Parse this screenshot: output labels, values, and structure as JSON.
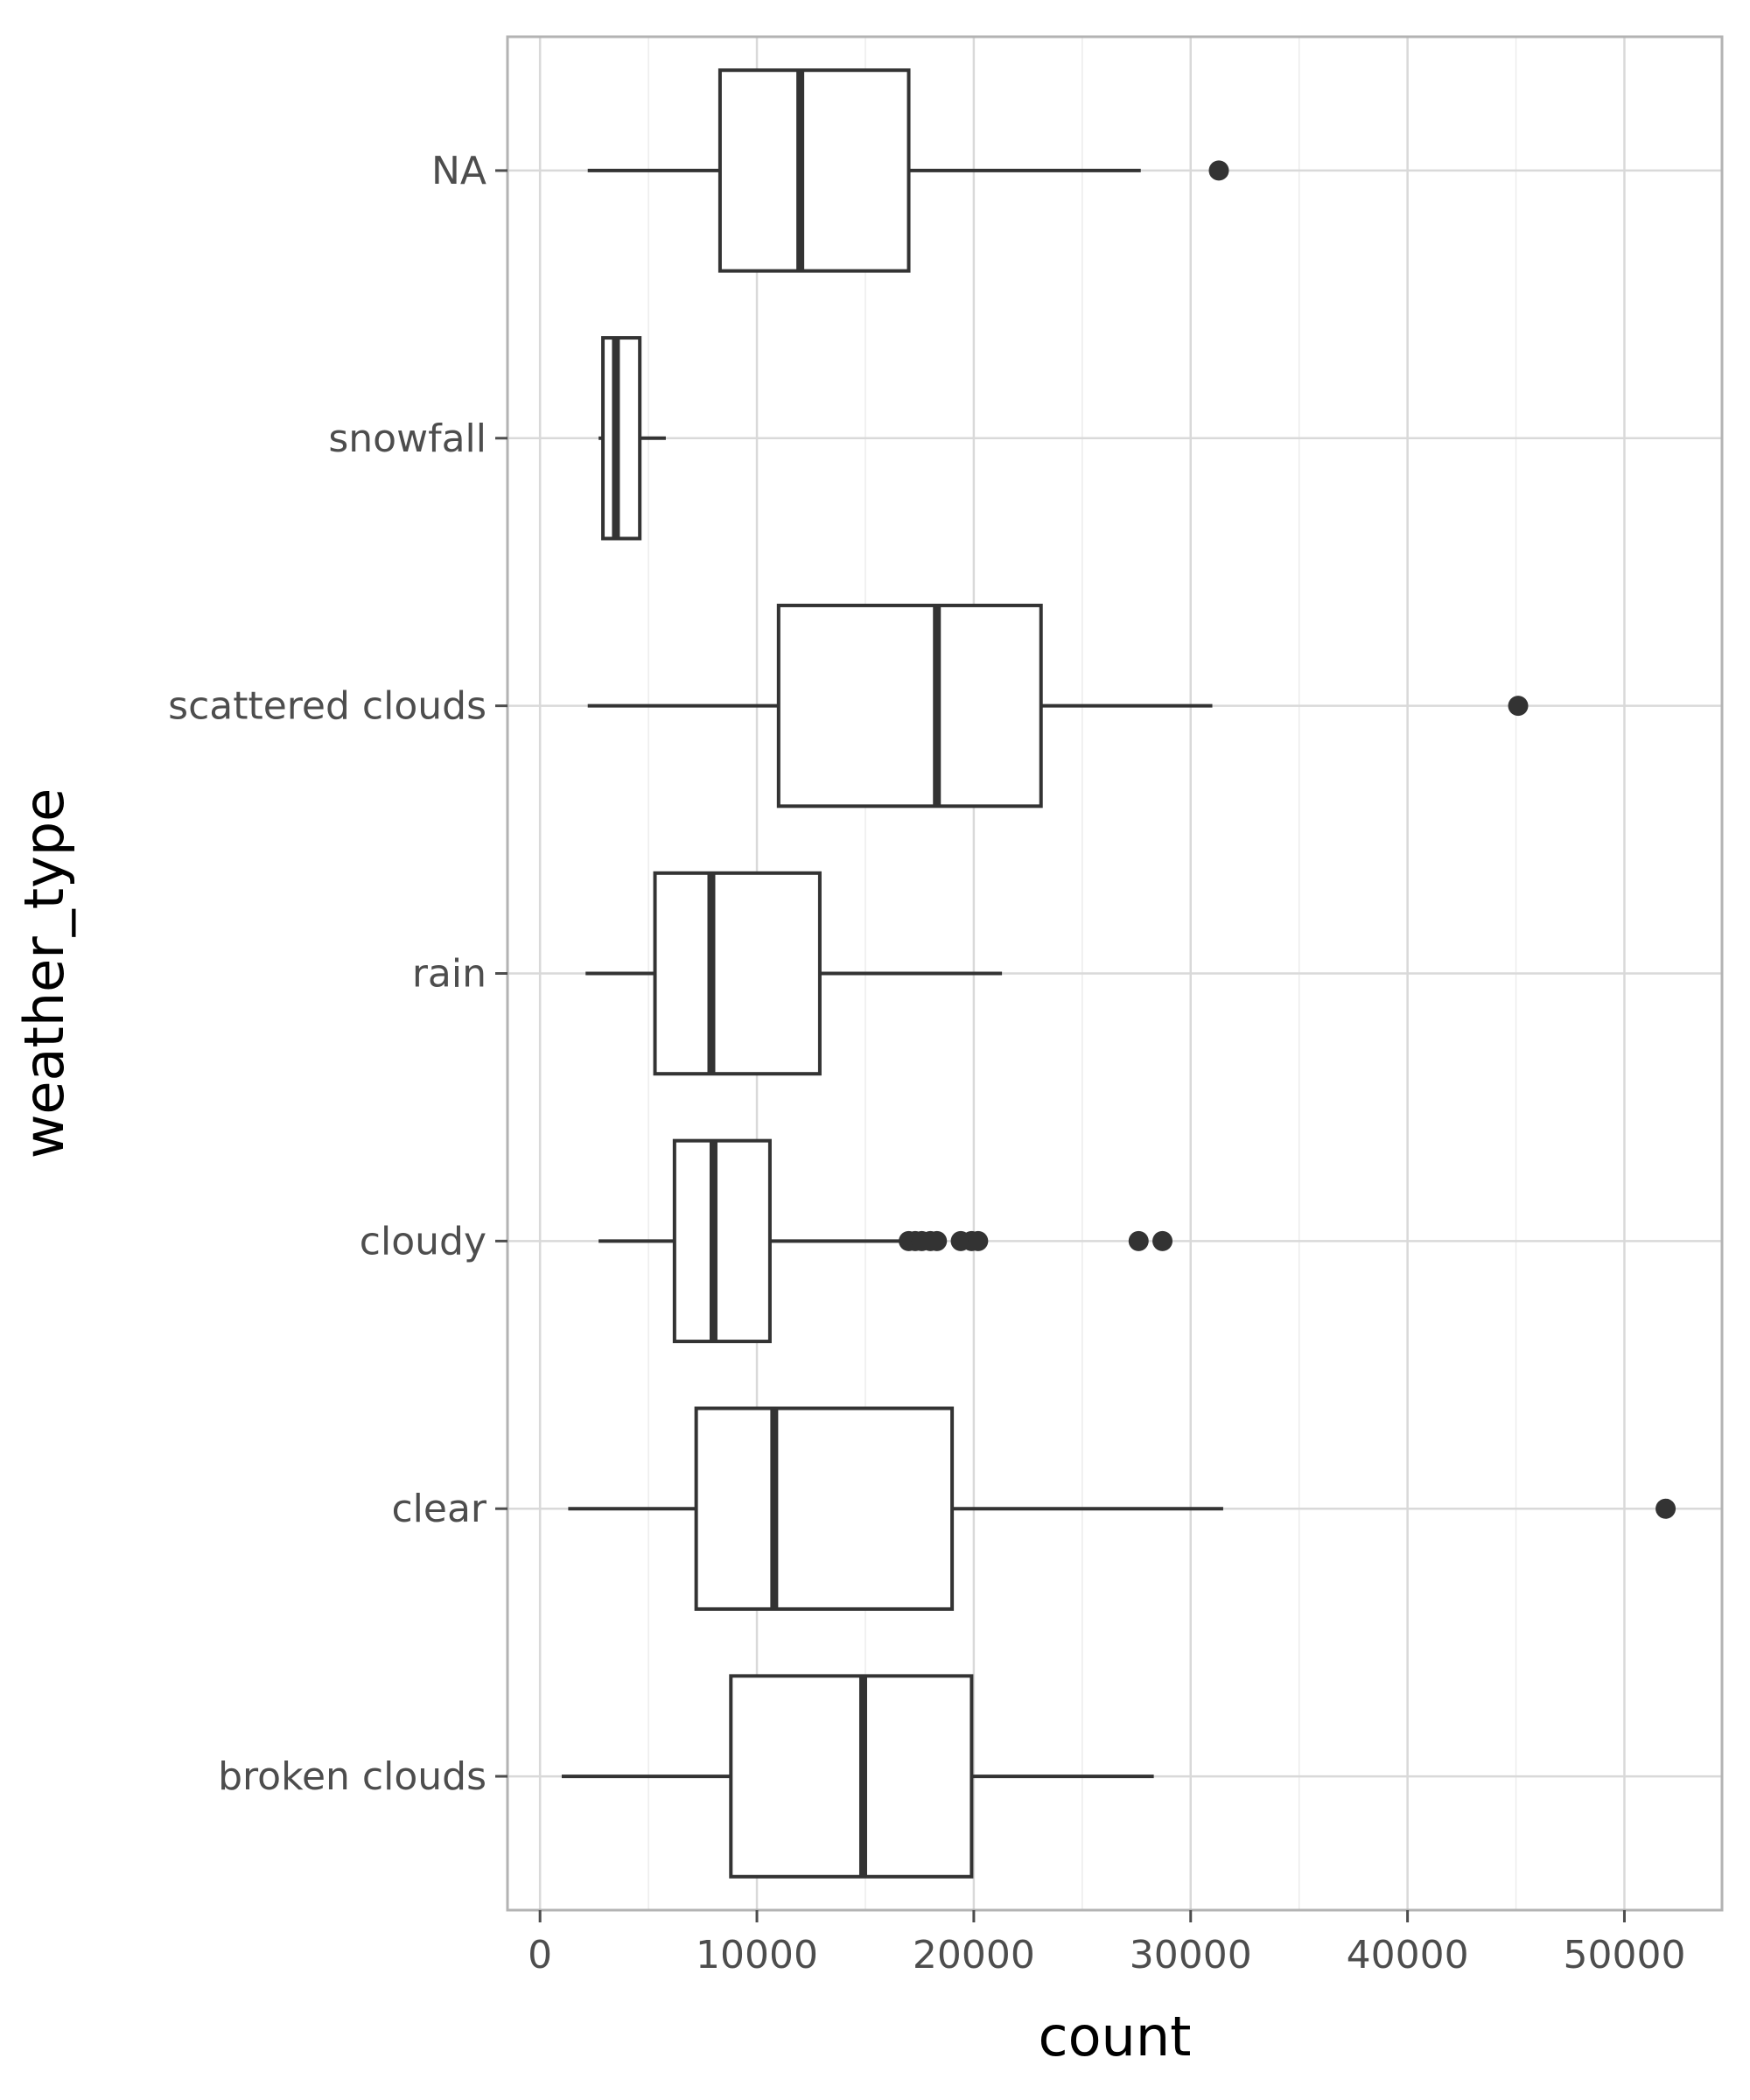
{
  "chart_data": {
    "type": "boxplot",
    "orientation": "horizontal",
    "xlabel": "count",
    "ylabel": "weather_type",
    "xlim": [
      -1500,
      54500
    ],
    "x_ticks": [
      0,
      10000,
      20000,
      30000,
      40000,
      50000
    ],
    "grid": true,
    "categories": [
      "NA",
      "snowfall",
      "scattered clouds",
      "rain",
      "cloudy",
      "clear",
      "broken clouds"
    ],
    "boxes": [
      {
        "category": "NA",
        "whisker_low": 2200,
        "q1": 8300,
        "median": 12000,
        "q3": 17000,
        "whisker_high": 27700,
        "outliers": [
          31300
        ]
      },
      {
        "category": "snowfall",
        "whisker_low": 2700,
        "q1": 2900,
        "median": 3500,
        "q3": 4600,
        "whisker_high": 5800,
        "outliers": []
      },
      {
        "category": "scattered clouds",
        "whisker_low": 2200,
        "q1": 11000,
        "median": 18300,
        "q3": 23100,
        "whisker_high": 31000,
        "outliers": [
          45100
        ]
      },
      {
        "category": "rain",
        "whisker_low": 2100,
        "q1": 5300,
        "median": 7900,
        "q3": 12900,
        "whisker_high": 21300,
        "outliers": []
      },
      {
        "category": "cloudy",
        "whisker_low": 2700,
        "q1": 6200,
        "median": 8000,
        "q3": 10600,
        "whisker_high": 17000,
        "outliers": [
          17000,
          17300,
          17600,
          18000,
          18300,
          19400,
          19900,
          20200,
          27600,
          28700
        ]
      },
      {
        "category": "clear",
        "whisker_low": 1300,
        "q1": 7200,
        "median": 10800,
        "q3": 19000,
        "whisker_high": 31500,
        "outliers": [
          51900
        ]
      },
      {
        "category": "broken clouds",
        "whisker_low": 1000,
        "q1": 8800,
        "median": 14900,
        "q3": 19900,
        "whisker_high": 28300,
        "outliers": []
      }
    ],
    "colors": {
      "box_stroke": "#333333",
      "panel_border": "#b3b3b3",
      "grid_major": "#d9d9d9",
      "grid_minor": "#ececec",
      "tick_text": "#4d4d4d"
    }
  }
}
